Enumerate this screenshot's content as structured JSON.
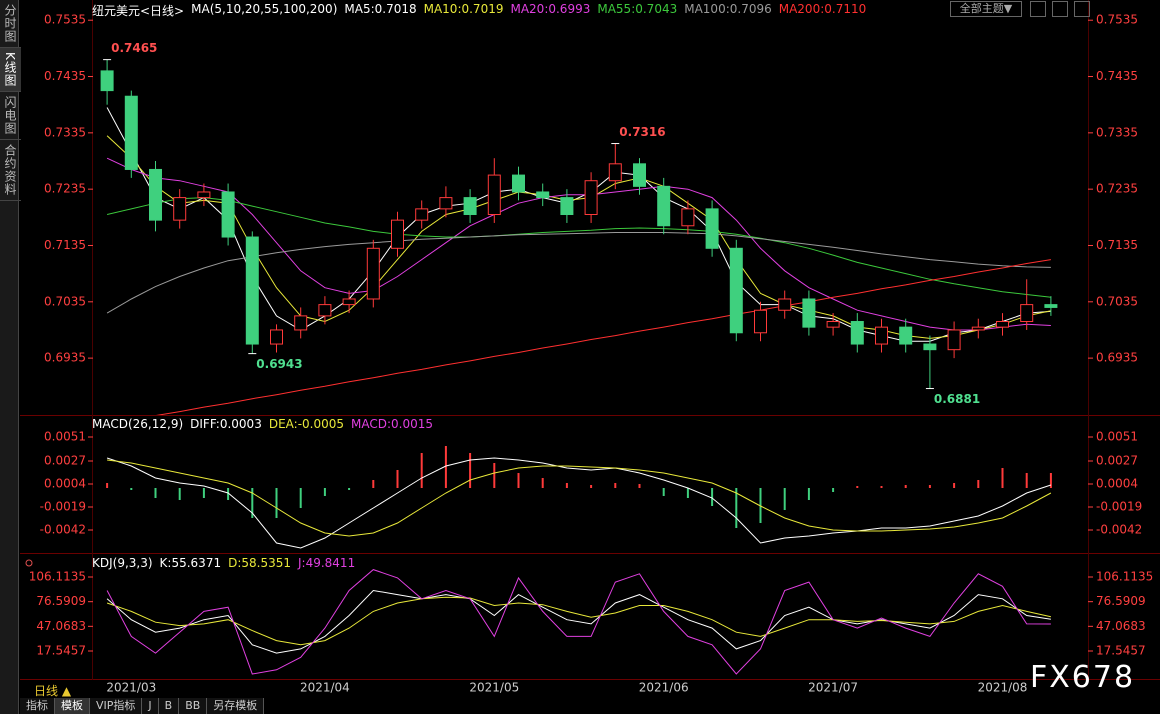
{
  "ui": {
    "sidebar": [
      "分时图",
      "K线图",
      "闪电图",
      "合约资料"
    ],
    "theme_button": "全部主题▼",
    "period": "日线 ▲",
    "toolbar": [
      "指标",
      "模板",
      "VIP指标",
      "J",
      "B",
      "BB",
      "另存模板"
    ],
    "watermark": "FX678"
  },
  "chart_data": [
    {
      "type": "candlestick",
      "title": "纽元美元<日线>",
      "up_color": "#ff3a3a",
      "down_color": "#3fd07e",
      "categories": [
        null,
        "2021/03",
        null,
        null,
        null,
        null,
        null,
        null,
        null,
        "2021/04",
        null,
        null,
        null,
        null,
        null,
        null,
        "2021/05",
        null,
        null,
        null,
        null,
        null,
        null,
        "2021/06",
        null,
        null,
        null,
        null,
        null,
        null,
        "2021/07",
        null,
        null,
        null,
        null,
        null,
        null,
        "2021/08",
        null,
        null
      ],
      "open": [
        0.7445,
        0.74,
        0.727,
        0.718,
        0.722,
        0.723,
        0.715,
        0.696,
        0.6985,
        0.701,
        0.703,
        0.704,
        0.713,
        0.718,
        0.72,
        0.722,
        0.719,
        0.726,
        0.723,
        0.722,
        0.719,
        0.725,
        0.728,
        0.724,
        0.717,
        0.72,
        0.713,
        0.698,
        0.702,
        0.704,
        0.699,
        0.7,
        0.696,
        0.699,
        0.696,
        0.695,
        0.6985,
        0.699,
        0.7,
        0.703
      ],
      "high": [
        0.7465,
        0.741,
        0.7285,
        0.7235,
        0.7245,
        0.7245,
        0.716,
        0.6995,
        0.7025,
        0.7045,
        0.7055,
        0.7145,
        0.7195,
        0.7215,
        0.724,
        0.7235,
        0.729,
        0.7275,
        0.7245,
        0.7235,
        0.7265,
        0.7316,
        0.729,
        0.7255,
        0.7215,
        0.7215,
        0.7145,
        0.7035,
        0.7055,
        0.7055,
        0.7015,
        0.7015,
        0.7005,
        0.7005,
        0.6975,
        0.7,
        0.7005,
        0.7015,
        0.7075,
        0.7045
      ],
      "low": [
        0.7385,
        0.7255,
        0.716,
        0.7165,
        0.7205,
        0.7135,
        0.6943,
        0.6945,
        0.697,
        0.6995,
        0.7015,
        0.7025,
        0.7115,
        0.7165,
        0.7185,
        0.7175,
        0.7175,
        0.7215,
        0.7205,
        0.7175,
        0.7175,
        0.7235,
        0.7225,
        0.7155,
        0.7155,
        0.7115,
        0.6965,
        0.6965,
        0.7005,
        0.6975,
        0.6975,
        0.6945,
        0.6945,
        0.6945,
        0.6881,
        0.6935,
        0.697,
        0.6975,
        0.6985,
        0.701
      ],
      "close": [
        0.741,
        0.727,
        0.718,
        0.722,
        0.723,
        0.715,
        0.696,
        0.6985,
        0.701,
        0.703,
        0.704,
        0.713,
        0.718,
        0.72,
        0.722,
        0.719,
        0.726,
        0.723,
        0.722,
        0.719,
        0.725,
        0.728,
        0.724,
        0.717,
        0.72,
        0.713,
        0.698,
        0.702,
        0.704,
        0.699,
        0.7,
        0.696,
        0.699,
        0.696,
        0.695,
        0.6985,
        0.699,
        0.7,
        0.703,
        0.7025
      ],
      "legend_title": "MA(5,10,20,55,100,200)",
      "series": [
        {
          "name": "MA5:0.7018",
          "color": "#ffffff",
          "values": [
            0.738,
            0.73,
            0.722,
            0.72,
            0.722,
            0.718,
            0.708,
            0.701,
            0.6985,
            0.701,
            0.704,
            0.709,
            0.715,
            0.719,
            0.7205,
            0.721,
            0.723,
            0.7235,
            0.722,
            0.721,
            0.723,
            0.7265,
            0.726,
            0.722,
            0.72,
            0.716,
            0.707,
            0.703,
            0.703,
            0.701,
            0.7005,
            0.6985,
            0.6975,
            0.6965,
            0.6965,
            0.698,
            0.6985,
            0.7,
            0.7015,
            0.7018
          ]
        },
        {
          "name": "MA10:0.7019",
          "color": "#e8e83a",
          "values": [
            0.733,
            0.729,
            0.724,
            0.721,
            0.7215,
            0.721,
            0.713,
            0.706,
            0.701,
            0.7,
            0.702,
            0.706,
            0.711,
            0.716,
            0.719,
            0.72,
            0.7215,
            0.723,
            0.7225,
            0.7215,
            0.722,
            0.7245,
            0.7255,
            0.724,
            0.721,
            0.718,
            0.711,
            0.705,
            0.703,
            0.702,
            0.701,
            0.699,
            0.6985,
            0.6975,
            0.697,
            0.6975,
            0.6985,
            0.6995,
            0.701,
            0.7019
          ]
        },
        {
          "name": "MA20:0.6993",
          "color": "#e040e0",
          "values": [
            0.729,
            0.727,
            0.7255,
            0.725,
            0.724,
            0.723,
            0.719,
            0.714,
            0.709,
            0.706,
            0.705,
            0.7055,
            0.708,
            0.711,
            0.714,
            0.717,
            0.719,
            0.721,
            0.722,
            0.7225,
            0.7225,
            0.723,
            0.7235,
            0.724,
            0.7235,
            0.722,
            0.718,
            0.713,
            0.709,
            0.706,
            0.704,
            0.702,
            0.701,
            0.7,
            0.699,
            0.6985,
            0.6985,
            0.699,
            0.6995,
            0.6993
          ]
        },
        {
          "name": "MA55:0.7043",
          "color": "#3cc83c",
          "values": [
            0.719,
            0.72,
            0.721,
            0.7218,
            0.722,
            0.7215,
            0.7205,
            0.7195,
            0.7185,
            0.7175,
            0.7168,
            0.716,
            0.7155,
            0.7152,
            0.715,
            0.715,
            0.7152,
            0.7155,
            0.7158,
            0.716,
            0.7162,
            0.7165,
            0.7166,
            0.7165,
            0.7163,
            0.716,
            0.7155,
            0.7148,
            0.714,
            0.713,
            0.7118,
            0.7105,
            0.7095,
            0.7085,
            0.7075,
            0.7067,
            0.706,
            0.7053,
            0.7048,
            0.7043
          ]
        },
        {
          "name": "MA100:0.7096",
          "color": "#9a9a9a",
          "values": [
            0.7015,
            0.704,
            0.7062,
            0.708,
            0.7095,
            0.7108,
            0.7115,
            0.7122,
            0.7128,
            0.7133,
            0.7137,
            0.714,
            0.7143,
            0.7146,
            0.7148,
            0.715,
            0.7152,
            0.7154,
            0.7155,
            0.7156,
            0.7157,
            0.7158,
            0.7158,
            0.7158,
            0.7157,
            0.7156,
            0.7152,
            0.7147,
            0.7142,
            0.7137,
            0.7132,
            0.7126,
            0.712,
            0.7115,
            0.711,
            0.7106,
            0.7102,
            0.7099,
            0.7097,
            0.7096
          ]
        },
        {
          "name": "MA200:0.7110",
          "color": "#ff3030",
          "values": [
            0.6818,
            0.6825,
            0.6833,
            0.684,
            0.6848,
            0.6855,
            0.6863,
            0.687,
            0.6878,
            0.6885,
            0.6893,
            0.69,
            0.6908,
            0.6915,
            0.6923,
            0.693,
            0.6938,
            0.6945,
            0.6953,
            0.696,
            0.6968,
            0.6975,
            0.6983,
            0.699,
            0.6998,
            0.7005,
            0.7013,
            0.702,
            0.7028,
            0.7035,
            0.7043,
            0.705,
            0.7058,
            0.7065,
            0.7073,
            0.708,
            0.7088,
            0.7095,
            0.7103,
            0.711
          ]
        }
      ],
      "ylim": [
        0.6834,
        0.7562
      ],
      "yticks": [
        0.7535,
        0.7435,
        0.7335,
        0.7235,
        0.7135,
        0.7035,
        0.6935
      ]
    },
    {
      "type": "macd",
      "title": "MACD(26,12,9)",
      "up_color": "#ff3a3a",
      "down_color": "#3fd07e",
      "histogram": {
        "name": "MACD:0.0015",
        "color": "#e040e0",
        "values": [
          0.0005,
          -0.0002,
          -0.001,
          -0.0012,
          -0.001,
          -0.0012,
          -0.003,
          -0.003,
          -0.002,
          -0.0008,
          -0.0002,
          0.0008,
          0.0018,
          0.0035,
          0.0042,
          0.0035,
          0.0025,
          0.0015,
          0.001,
          0.0005,
          0.0003,
          0.0005,
          0.0004,
          -0.0008,
          -0.001,
          -0.0018,
          -0.004,
          -0.0035,
          -0.0022,
          -0.0012,
          -0.0004,
          0.0002,
          0.0002,
          0.0003,
          0.0003,
          0.0005,
          0.0008,
          0.002,
          0.0015,
          0.0015
        ]
      },
      "series": [
        {
          "name": "DIFF:0.0003",
          "color": "#ffffff",
          "values": [
            0.003,
            0.0022,
            0.001,
            0.0005,
            0.0002,
            -0.0005,
            -0.0025,
            -0.0055,
            -0.006,
            -0.005,
            -0.0035,
            -0.002,
            -0.0005,
            0.001,
            0.0022,
            0.0028,
            0.003,
            0.0028,
            0.0025,
            0.002,
            0.0018,
            0.002,
            0.0015,
            0.0008,
            0.0,
            -0.001,
            -0.003,
            -0.0055,
            -0.005,
            -0.0048,
            -0.0045,
            -0.0043,
            -0.004,
            -0.004,
            -0.0038,
            -0.0033,
            -0.0028,
            -0.0018,
            -0.0005,
            0.0003
          ]
        },
        {
          "name": "DEA:-0.0005",
          "color": "#e8e83a",
          "values": [
            0.0028,
            0.0025,
            0.002,
            0.0015,
            0.001,
            0.0005,
            -0.0005,
            -0.002,
            -0.0035,
            -0.0045,
            -0.0048,
            -0.0045,
            -0.0035,
            -0.002,
            -0.0005,
            0.0008,
            0.0015,
            0.002,
            0.0022,
            0.0022,
            0.0021,
            0.002,
            0.0018,
            0.0015,
            0.001,
            0.0005,
            -0.0005,
            -0.0018,
            -0.003,
            -0.0038,
            -0.0042,
            -0.0043,
            -0.0043,
            -0.0042,
            -0.0041,
            -0.0039,
            -0.0035,
            -0.003,
            -0.0018,
            -0.0005
          ]
        }
      ],
      "ylim": [
        -0.0064,
        0.007
      ],
      "yticks": [
        0.0051,
        0.0027,
        0.0004,
        -0.0019,
        -0.0042
      ]
    },
    {
      "type": "line",
      "title": "KDJ(9,3,3)",
      "series": [
        {
          "name": "K:55.6371",
          "color": "#ffffff",
          "values": [
            80,
            55,
            40,
            45,
            55,
            60,
            25,
            15,
            20,
            35,
            60,
            90,
            85,
            80,
            85,
            80,
            60,
            85,
            70,
            55,
            50,
            75,
            85,
            70,
            55,
            45,
            20,
            30,
            60,
            70,
            55,
            50,
            55,
            50,
            45,
            60,
            85,
            80,
            60,
            55.6371
          ]
        },
        {
          "name": "D:58.5351",
          "color": "#e8e83a",
          "values": [
            75,
            65,
            52,
            48,
            50,
            55,
            42,
            30,
            25,
            30,
            45,
            65,
            75,
            80,
            82,
            81,
            72,
            75,
            73,
            65,
            58,
            63,
            72,
            72,
            65,
            55,
            40,
            35,
            45,
            55,
            55,
            53,
            54,
            52,
            50,
            53,
            65,
            72,
            65,
            58.5351
          ]
        },
        {
          "name": "J:49.8411",
          "color": "#e040e0",
          "values": [
            90,
            35,
            15,
            40,
            65,
            70,
            -10,
            -5,
            10,
            45,
            90,
            115,
            105,
            80,
            90,
            80,
            35,
            105,
            65,
            35,
            35,
            100,
            110,
            65,
            35,
            25,
            -10,
            20,
            90,
            100,
            55,
            45,
            57,
            45,
            35,
            75,
            110,
            95,
            50,
            49.8411
          ]
        }
      ],
      "ylim": [
        -13.6,
        119.3
      ],
      "yticks": [
        106.1135,
        76.5909,
        47.0683,
        17.5457
      ]
    }
  ]
}
